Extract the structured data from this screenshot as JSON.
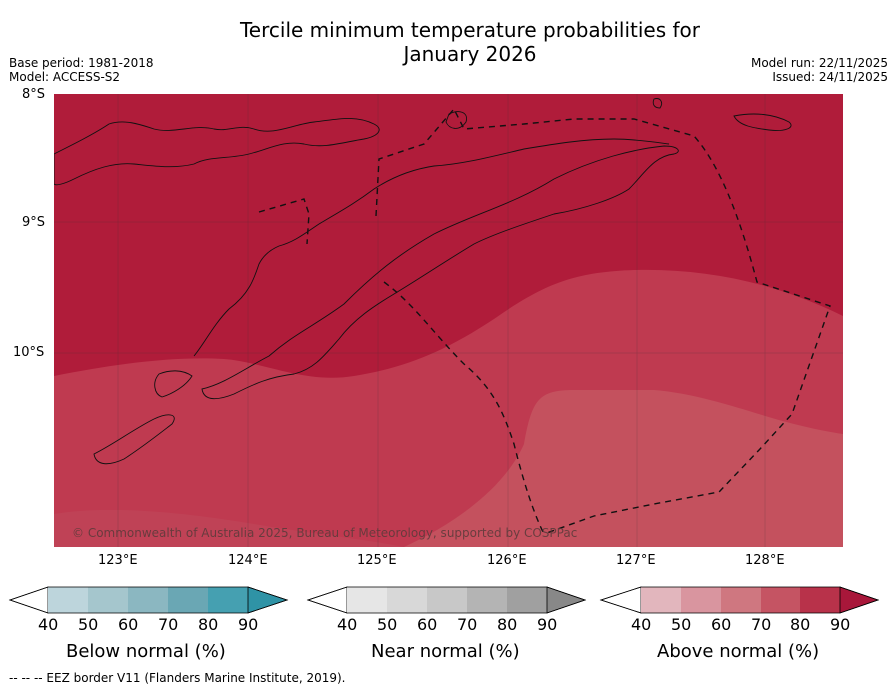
{
  "title": "Tercile minimum temperature probabilities for\nJanuary 2026",
  "meta": {
    "base_period": "Base period: 1981-2018",
    "model": "Model: ACCESS-S2",
    "model_run": "Model run: 22/11/2025",
    "issued": "Issued: 24/11/2025"
  },
  "latitudes": [
    "8°S",
    "9°S",
    "10°S"
  ],
  "longitudes": [
    "123°E",
    "124°E",
    "125°E",
    "126°E",
    "127°E",
    "128°E"
  ],
  "copyright": "© Commonwealth of Australia 2025, Bureau of Meteorology, supported by COSPPac",
  "colorbars": [
    {
      "label": "Below normal (%)",
      "ticks": [
        "40",
        "50",
        "60",
        "70",
        "80",
        "90"
      ],
      "colors": [
        "#ffffff",
        "#bdd5dc",
        "#a5c6cd",
        "#8bb7c1",
        "#6aa7b4",
        "#45a0b1",
        "#2f93a6"
      ]
    },
    {
      "label": "Near normal (%)",
      "ticks": [
        "40",
        "50",
        "60",
        "70",
        "80",
        "90"
      ],
      "colors": [
        "#ffffff",
        "#e6e6e6",
        "#d8d8d8",
        "#c8c8c8",
        "#b4b4b4",
        "#a0a0a0",
        "#888888"
      ]
    },
    {
      "label": "Above normal (%)",
      "ticks": [
        "40",
        "50",
        "60",
        "70",
        "80",
        "90"
      ],
      "colors": [
        "#ffffff",
        "#e2b6bd",
        "#d9959f",
        "#cf7780",
        "#c55463",
        "#b8324a",
        "#a8173a"
      ]
    }
  ],
  "footer": "--  --  -- EEZ border V11 (Flanders Marine Institute, 2019).",
  "map_colors": {
    "high": "#b01c3a",
    "mid": "#bf3a50",
    "low": "#c4515e"
  }
}
